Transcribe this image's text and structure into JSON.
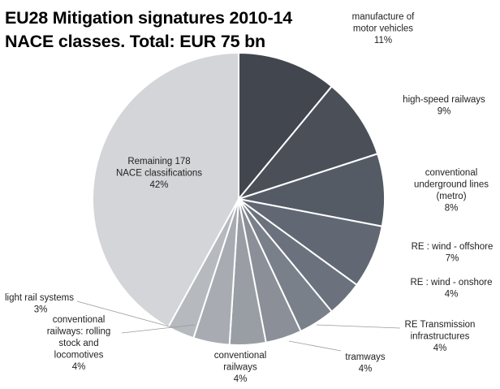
{
  "chart_data": {
    "type": "pie",
    "title_lines": [
      "EU28 Mitigation signatures 2010-14",
      "NACE classes. Total: EUR 75 bn"
    ],
    "unit": "%",
    "colors": {
      "slice_dark": "#3f444d",
      "slice_mid": "#5d6570",
      "slice_light": "#9ea3ab",
      "slice_pale": "#bcbfc4",
      "remaining": "#d4d6d9",
      "separator": "#ffffff"
    },
    "slices": [
      {
        "label_lines": [
          "manufacture of",
          "motor vehicles"
        ],
        "value_text": "11%",
        "value": 11,
        "color": "#41464f"
      },
      {
        "label_lines": [
          "high-speed railways"
        ],
        "value_text": "9%",
        "value": 9,
        "color": "#4a4f58"
      },
      {
        "label_lines": [
          "conventional",
          "underground lines",
          "(metro)"
        ],
        "value_text": "8%",
        "value": 8,
        "color": "#555b65"
      },
      {
        "label_lines": [
          "RE : wind - offshore"
        ],
        "value_text": "7%",
        "value": 7,
        "color": "#626873"
      },
      {
        "label_lines": [
          "RE : wind - onshore"
        ],
        "value_text": "4%",
        "value": 4,
        "color": "#6c727d"
      },
      {
        "label_lines": [
          "RE Transmission",
          "infrastructures"
        ],
        "value_text": "4%",
        "value": 4,
        "color": "#7a808a"
      },
      {
        "label_lines": [
          "tramways"
        ],
        "value_text": "4%",
        "value": 4,
        "color": "#8a8f98"
      },
      {
        "label_lines": [
          "conventional",
          "railways"
        ],
        "value_text": "4%",
        "value": 4,
        "color": "#999ea5"
      },
      {
        "label_lines": [
          "conventional",
          "railways: rolling",
          "stock and",
          "locomotives"
        ],
        "value_text": "4%",
        "value": 4,
        "color": "#a8acb2"
      },
      {
        "label_lines": [
          "light rail systems"
        ],
        "value_text": "3%",
        "value": 3,
        "color": "#b6b9be"
      },
      {
        "label_lines": [
          "Remaining 178",
          "NACE classifications"
        ],
        "value_text": "42%",
        "value": 42,
        "color": "#d3d5d8"
      }
    ]
  }
}
